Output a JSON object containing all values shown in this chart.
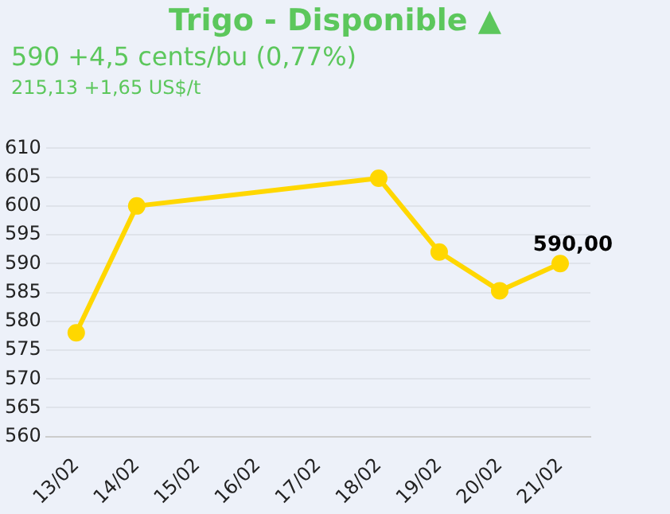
{
  "chart_data": {
    "type": "line",
    "title": "Trigo - Disponible ▲",
    "subtitle": "590 +4,5 cents/bu (0,77%)",
    "annotations": [
      "215,13 +1,65 US$/t"
    ],
    "categories": [
      "13/02",
      "14/02",
      "15/02",
      "16/02",
      "17/02",
      "18/02",
      "19/02",
      "20/02",
      "21/02"
    ],
    "series": [
      {
        "color": "#ffd700",
        "values": [
          578,
          600,
          null,
          null,
          null,
          604.8,
          592,
          585.3,
          590
        ],
        "value_labels": [
          null,
          null,
          null,
          null,
          null,
          null,
          null,
          null,
          "590,00"
        ]
      }
    ],
    "ylim": [
      560,
      610
    ],
    "yticks": [
      560,
      565,
      570,
      575,
      580,
      585,
      590,
      595,
      600,
      605,
      610
    ],
    "grid": "y",
    "legend": false,
    "marker": "circle",
    "line_style": "solid"
  }
}
